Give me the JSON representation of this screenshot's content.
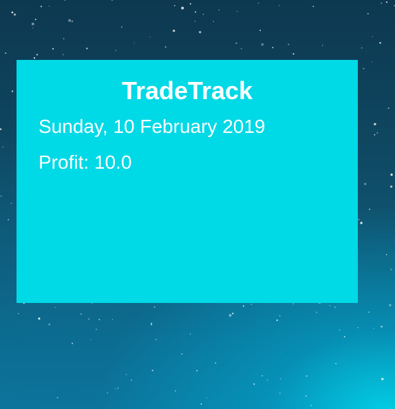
{
  "widget": {
    "title": "TradeTrack",
    "date": "Sunday, 10 February 2019",
    "profit": "Profit: 10.0"
  },
  "colors": {
    "widget_background": "#00d9e6",
    "text": "#ffffff",
    "wallpaper_dark": "#0d3850",
    "wallpaper_glow": "#00dcf0"
  },
  "wallpaper": "starry-night-sky"
}
